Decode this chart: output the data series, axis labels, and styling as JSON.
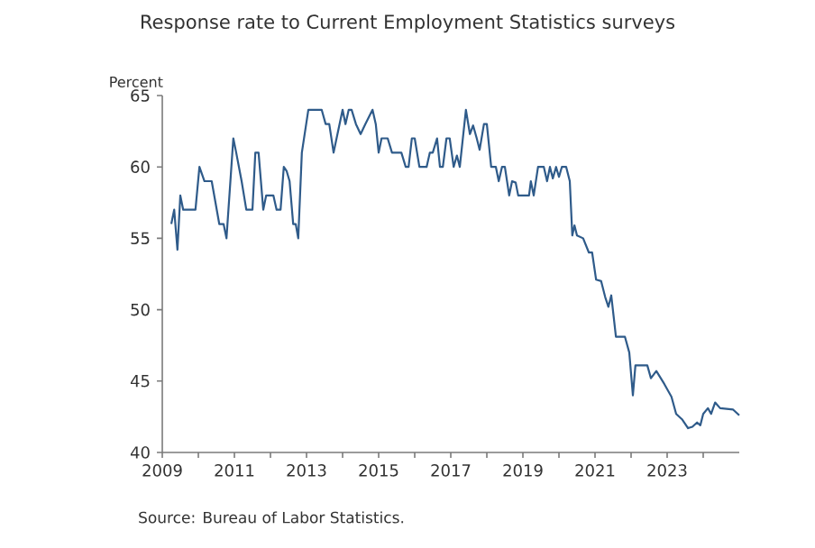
{
  "chart_data": {
    "type": "line",
    "title": "Response rate to Current Employment Statistics surveys",
    "ylabel": "Percent",
    "annotations": [
      "Source: Bureau of Labor Statistics."
    ],
    "xlim": [
      2009,
      2025
    ],
    "ylim": [
      40,
      65
    ],
    "yticks": [
      40,
      45,
      50,
      55,
      60,
      65
    ],
    "xticks": [
      2009,
      {
        "value": 2010,
        "label": null
      },
      2011,
      {
        "value": 2012,
        "label": null
      },
      2013,
      {
        "value": 2014,
        "label": null
      },
      2015,
      {
        "value": 2016,
        "label": null
      },
      2017,
      {
        "value": 2018,
        "label": null
      },
      2019,
      {
        "value": 2020,
        "label": null
      },
      2021,
      {
        "value": 2022,
        "label": null
      },
      2023,
      {
        "value": 2024,
        "label": null
      }
    ],
    "grid": false,
    "marker": "none",
    "line_style": "solid",
    "series": [
      {
        "color": "#2f5b8a",
        "x": [
          2009.25,
          2009.33,
          2009.42,
          2009.5,
          2009.58,
          2009.92,
          2010.03,
          2010.17,
          2010.37,
          2010.58,
          2010.7,
          2010.78,
          2010.97,
          2011.05,
          2011.2,
          2011.33,
          2011.5,
          2011.58,
          2011.67,
          2011.8,
          2011.88,
          2012.08,
          2012.17,
          2012.28,
          2012.37,
          2012.45,
          2012.53,
          2012.63,
          2012.7,
          2012.77,
          2012.87,
          2013.05,
          2013.42,
          2013.53,
          2013.63,
          2013.75,
          2014.0,
          2014.08,
          2014.17,
          2014.25,
          2014.37,
          2014.5,
          2014.63,
          2014.83,
          2014.92,
          2015.0,
          2015.08,
          2015.25,
          2015.37,
          2015.63,
          2015.75,
          2015.83,
          2015.92,
          2016.0,
          2016.13,
          2016.33,
          2016.42,
          2016.5,
          2016.62,
          2016.7,
          2016.78,
          2016.88,
          2016.97,
          2017.08,
          2017.17,
          2017.25,
          2017.42,
          2017.53,
          2017.62,
          2017.72,
          2017.8,
          2017.92,
          2018.0,
          2018.12,
          2018.25,
          2018.33,
          2018.42,
          2018.5,
          2018.62,
          2018.7,
          2018.8,
          2018.87,
          2019.17,
          2019.22,
          2019.3,
          2019.42,
          2019.58,
          2019.67,
          2019.75,
          2019.83,
          2019.92,
          2020.0,
          2020.08,
          2020.2,
          2020.3,
          2020.37,
          2020.43,
          2020.5,
          2020.67,
          2020.83,
          2020.92,
          2021.03,
          2021.17,
          2021.28,
          2021.37,
          2021.45,
          2021.58,
          2021.83,
          2021.95,
          2022.05,
          2022.12,
          2022.45,
          2022.55,
          2022.7,
          2022.92,
          2023.12,
          2023.25,
          2023.42,
          2023.58,
          2023.7,
          2023.83,
          2023.92,
          2024.0,
          2024.13,
          2024.22,
          2024.33,
          2024.47,
          2024.83,
          2025.0
        ],
        "values": [
          56,
          57,
          54.2,
          58,
          57,
          57,
          60,
          59,
          59,
          56,
          56,
          55,
          62,
          61,
          59,
          57,
          57,
          61,
          61,
          57,
          58,
          58,
          57,
          57,
          60,
          59.7,
          59,
          56,
          56,
          55,
          61,
          64,
          64,
          63,
          63,
          61,
          64,
          63,
          64,
          64,
          63,
          62.3,
          63,
          64,
          63,
          61,
          62,
          62,
          61,
          61,
          60,
          60,
          62,
          62,
          60,
          60,
          61,
          61,
          62,
          60,
          60,
          62,
          62,
          60,
          60.8,
          60,
          64,
          62.3,
          62.9,
          62,
          61.2,
          63,
          63,
          60,
          60,
          59,
          60,
          60,
          58,
          59,
          58.9,
          58,
          58,
          59,
          58,
          60,
          60,
          59,
          60,
          59.2,
          60,
          59.3,
          60,
          60,
          59,
          55.2,
          55.9,
          55.2,
          55,
          54,
          54,
          52.1,
          52,
          50.9,
          50.2,
          51,
          48.1,
          48.1,
          47,
          44,
          46.1,
          46.1,
          45.2,
          45.7,
          44.8,
          43.9,
          42.7,
          42.3,
          41.7,
          41.8,
          42.1,
          41.9,
          42.7,
          43.1,
          42.7,
          43.5,
          43.1,
          43,
          42.6
        ]
      }
    ]
  }
}
